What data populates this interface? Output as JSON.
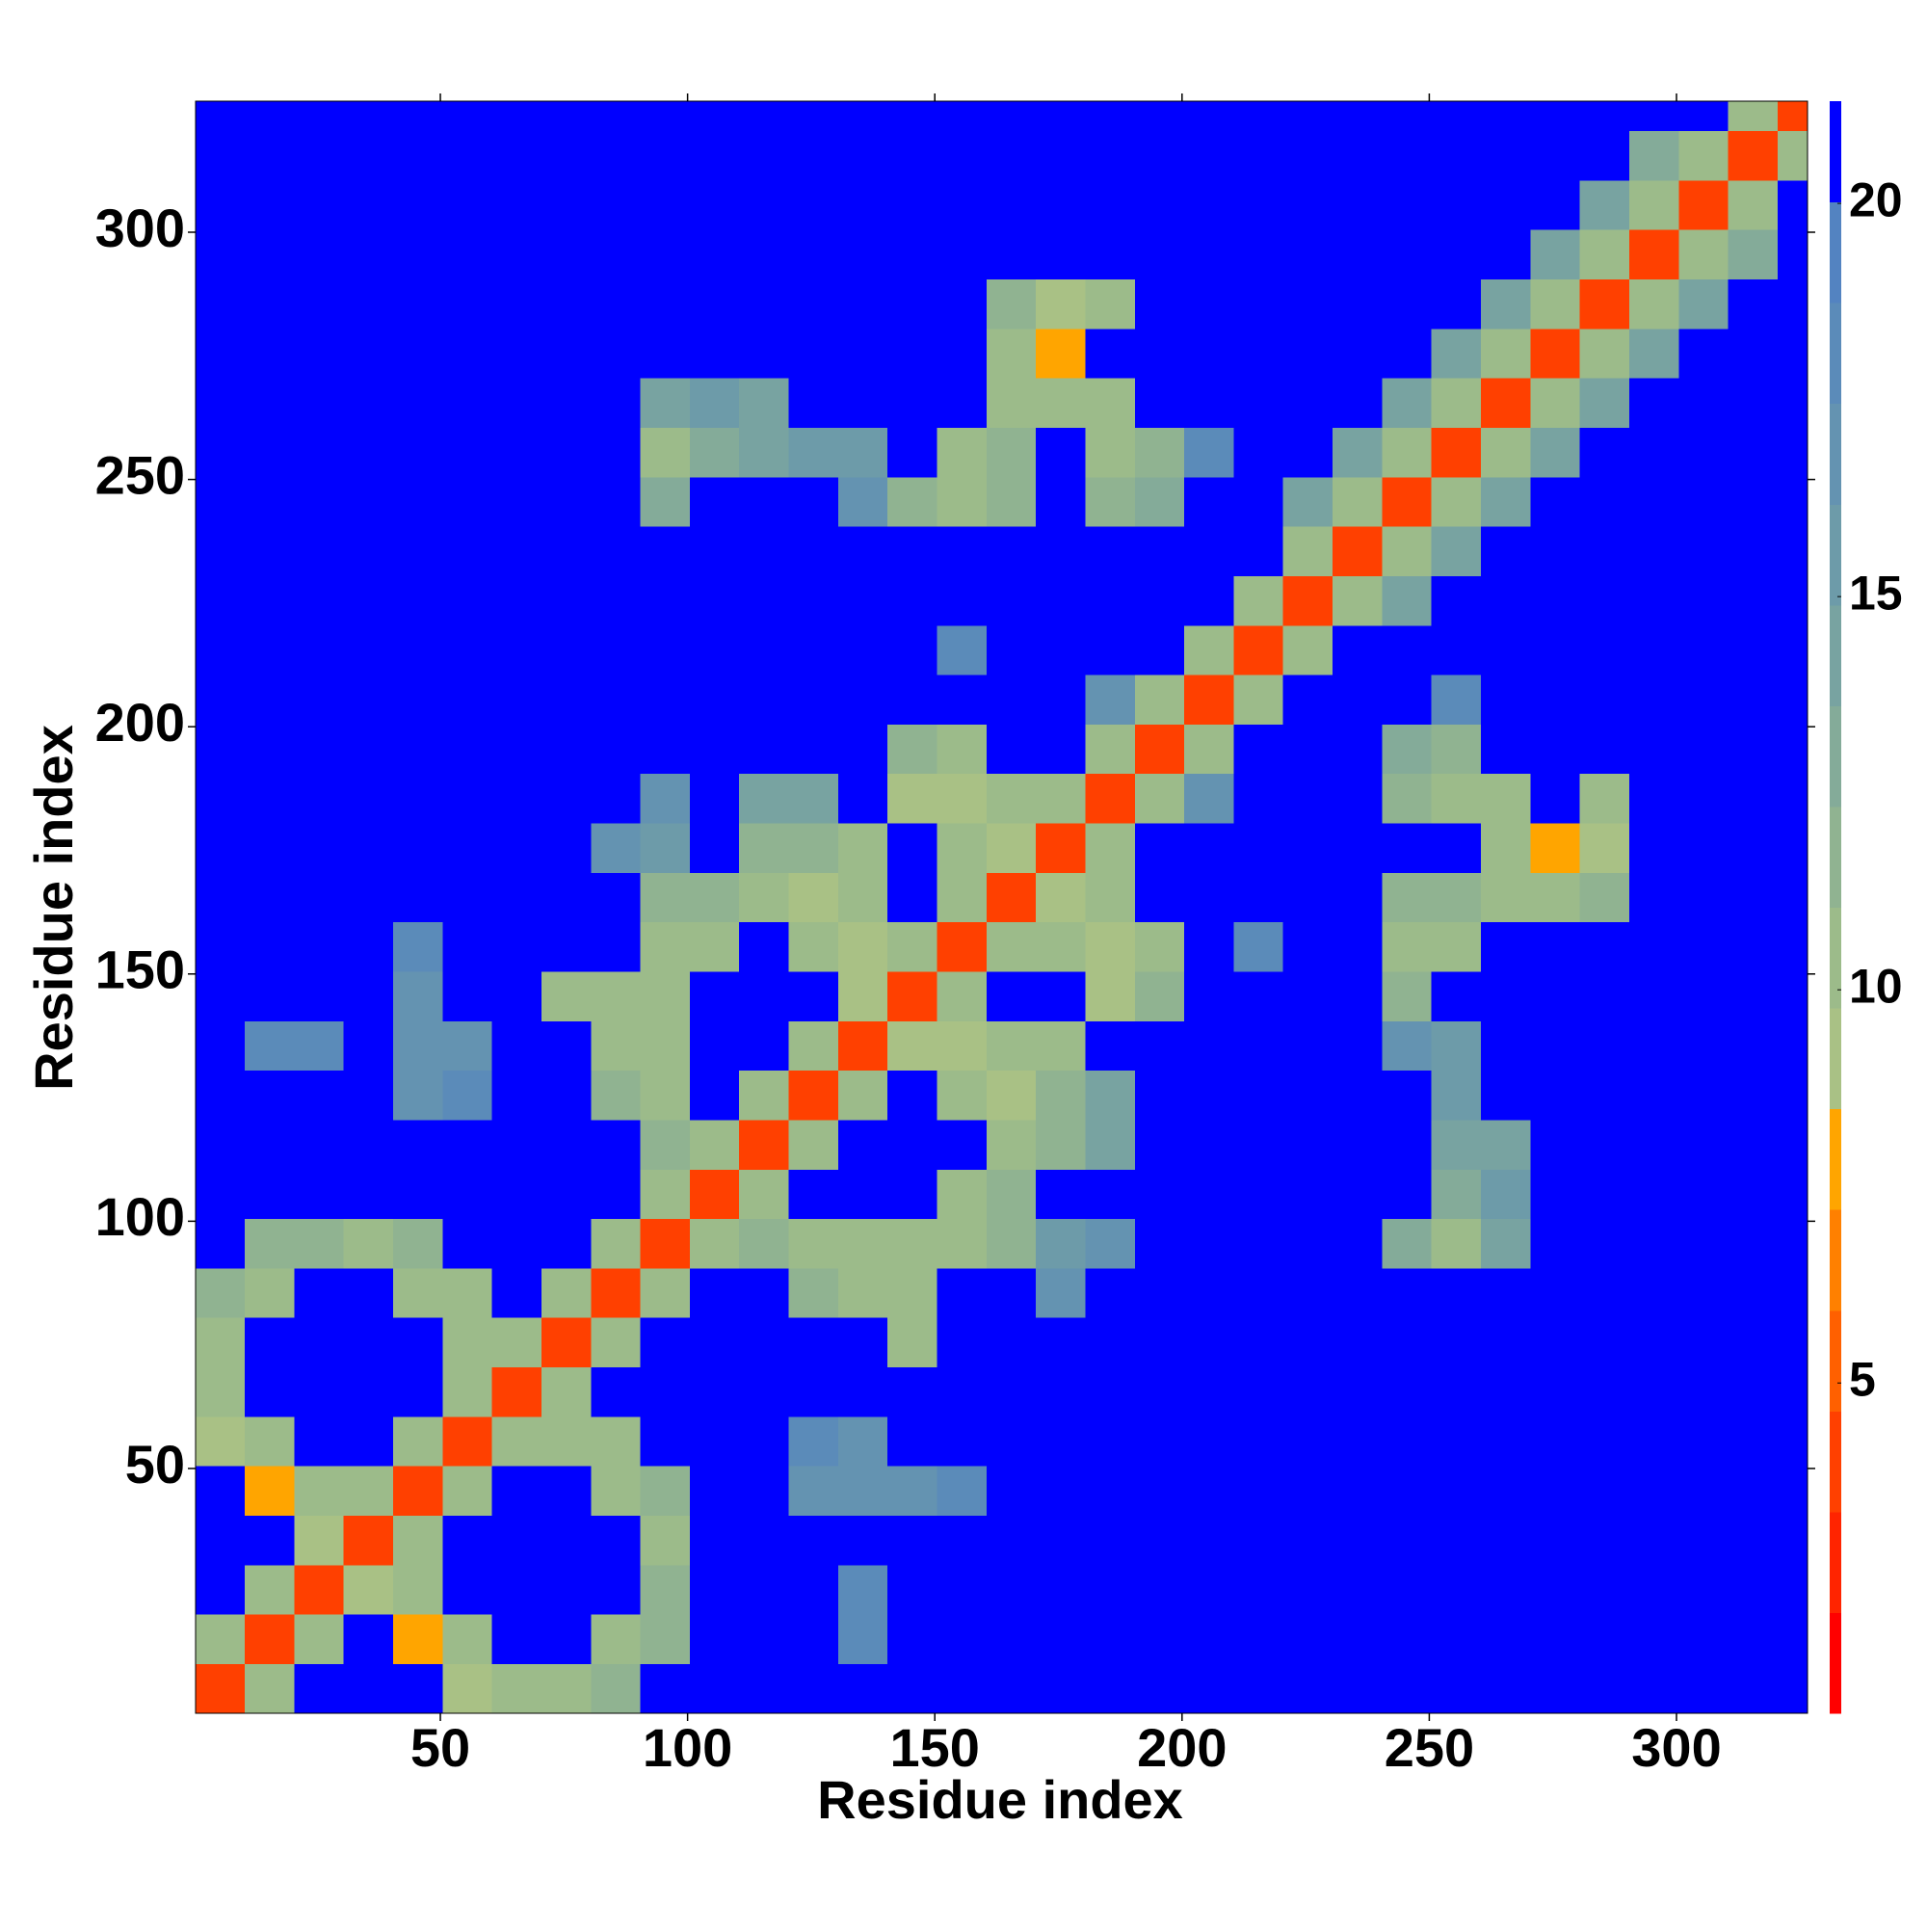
{
  "chart_data": {
    "type": "heatmap",
    "xlabel": "Residue index",
    "ylabel": "Residue index",
    "xlim": [
      0.5,
      326.5
    ],
    "ylim": [
      0.5,
      326.5
    ],
    "xticks": [
      50,
      100,
      150,
      200,
      250,
      300
    ],
    "yticks": [
      50,
      100,
      150,
      200,
      250,
      300
    ],
    "xbins": [
      0.5,
      10.5,
      20.5,
      30.5,
      40.5,
      50.5,
      60.5,
      70.5,
      80.5,
      90.5,
      100.5,
      110.5,
      120.5,
      130.5,
      140.5,
      150.5,
      160.5,
      170.5,
      180.5,
      190.5,
      200.5,
      210.5,
      220.5,
      230.5,
      240.5,
      250.5,
      260.5,
      270.5,
      280.5,
      290.5,
      300.5,
      310.5,
      320.5,
      326.5
    ],
    "ybins": [
      0.5,
      10.5,
      20.5,
      30.5,
      40.5,
      50.5,
      60.5,
      70.5,
      80.5,
      90.5,
      100.5,
      110.5,
      120.5,
      130.5,
      140.5,
      150.5,
      160.5,
      170.5,
      180.5,
      190.5,
      200.5,
      210.5,
      220.5,
      230.5,
      240.5,
      250.5,
      260.5,
      270.5,
      280.5,
      290.5,
      300.5,
      310.5,
      320.5,
      326.5
    ],
    "clim": [
      0.8,
      21.3
    ],
    "cticks": [
      5,
      10,
      15,
      20
    ],
    "colors": [
      "#ff0000",
      "#ff2400",
      "#ff4000",
      "#ff6000",
      "#ff8000",
      "#ffa500",
      "#a9c185",
      "#9cbb8a",
      "#90b391",
      "#84ab99",
      "#78a3a1",
      "#6d9ba9",
      "#6493b1",
      "#5b8bb9",
      "#5383c1",
      "#0000ff"
    ],
    "z": [
      [
        4,
        11,
        21,
        21,
        21,
        9,
        10,
        11,
        12,
        21,
        21,
        21,
        21,
        21,
        21,
        21,
        21,
        21,
        21,
        21,
        21,
        21,
        21,
        21,
        21,
        21,
        21,
        21,
        21,
        21,
        21,
        21,
        21
      ],
      [
        11,
        4,
        11,
        21,
        8,
        10,
        21,
        21,
        11,
        12,
        21,
        21,
        21,
        18,
        21,
        21,
        21,
        21,
        21,
        21,
        21,
        21,
        21,
        21,
        21,
        21,
        21,
        21,
        21,
        21,
        21,
        21,
        21
      ],
      [
        21,
        11,
        4,
        9,
        11,
        21,
        21,
        21,
        21,
        12,
        21,
        21,
        21,
        18,
        21,
        21,
        21,
        21,
        21,
        21,
        21,
        21,
        21,
        21,
        21,
        21,
        21,
        21,
        21,
        21,
        21,
        21,
        21
      ],
      [
        21,
        21,
        9,
        4,
        11,
        21,
        21,
        21,
        21,
        11,
        21,
        21,
        21,
        21,
        21,
        21,
        21,
        21,
        21,
        21,
        21,
        21,
        21,
        21,
        21,
        21,
        21,
        21,
        21,
        21,
        21,
        21,
        21
      ],
      [
        21,
        8,
        11,
        11,
        4,
        11,
        21,
        21,
        11,
        12,
        21,
        21,
        17,
        17,
        17,
        18,
        21,
        21,
        21,
        21,
        21,
        21,
        21,
        21,
        21,
        21,
        21,
        21,
        21,
        21,
        21,
        21,
        21
      ],
      [
        9,
        10,
        21,
        21,
        11,
        4,
        11,
        10,
        11,
        21,
        21,
        21,
        18,
        17,
        21,
        21,
        21,
        21,
        21,
        21,
        21,
        21,
        21,
        21,
        21,
        21,
        21,
        21,
        21,
        21,
        21,
        21,
        21
      ],
      [
        10,
        21,
        21,
        21,
        21,
        11,
        4,
        11,
        21,
        21,
        21,
        21,
        21,
        21,
        21,
        21,
        21,
        21,
        21,
        21,
        21,
        21,
        21,
        21,
        21,
        21,
        21,
        21,
        21,
        21,
        21,
        21,
        21
      ],
      [
        11,
        21,
        21,
        21,
        21,
        10,
        11,
        4,
        11,
        21,
        21,
        21,
        21,
        21,
        10,
        21,
        21,
        21,
        21,
        21,
        21,
        21,
        21,
        21,
        21,
        21,
        21,
        21,
        21,
        21,
        21,
        21,
        21
      ],
      [
        12,
        11,
        21,
        21,
        11,
        11,
        21,
        11,
        4,
        11,
        21,
        21,
        12,
        10,
        11,
        21,
        21,
        17,
        21,
        21,
        21,
        21,
        21,
        21,
        21,
        21,
        21,
        21,
        21,
        21,
        21,
        21,
        21
      ],
      [
        21,
        12,
        12,
        11,
        12,
        21,
        21,
        21,
        11,
        4,
        11,
        12,
        10,
        11,
        11,
        11,
        12,
        16,
        17,
        21,
        21,
        21,
        21,
        21,
        13,
        11,
        14,
        21,
        21,
        21,
        21,
        21,
        21
      ],
      [
        21,
        21,
        21,
        21,
        21,
        21,
        21,
        21,
        21,
        11,
        4,
        11,
        21,
        21,
        21,
        11,
        12,
        21,
        21,
        21,
        21,
        21,
        21,
        21,
        21,
        13,
        15,
        21,
        21,
        21,
        21,
        21,
        21
      ],
      [
        21,
        21,
        21,
        21,
        21,
        21,
        21,
        21,
        21,
        12,
        11,
        4,
        11,
        21,
        21,
        21,
        10,
        12,
        14,
        21,
        21,
        21,
        21,
        21,
        21,
        14,
        14,
        21,
        21,
        21,
        21,
        21,
        21
      ],
      [
        21,
        21,
        21,
        21,
        17,
        18,
        21,
        21,
        12,
        10,
        21,
        11,
        4,
        11,
        21,
        10,
        9,
        12,
        14,
        21,
        21,
        21,
        21,
        21,
        21,
        15,
        21,
        21,
        21,
        21,
        21,
        21,
        21
      ],
      [
        21,
        18,
        18,
        21,
        17,
        17,
        21,
        21,
        10,
        11,
        21,
        21,
        11,
        4,
        9,
        9,
        11,
        11,
        21,
        21,
        21,
        21,
        21,
        21,
        17,
        16,
        21,
        21,
        21,
        21,
        21,
        21,
        21
      ],
      [
        21,
        21,
        21,
        21,
        17,
        21,
        21,
        10,
        11,
        11,
        21,
        21,
        21,
        9,
        4,
        11,
        21,
        21,
        9,
        12,
        21,
        21,
        21,
        21,
        12,
        21,
        21,
        21,
        21,
        21,
        21,
        21,
        21
      ],
      [
        21,
        21,
        21,
        21,
        18,
        21,
        21,
        21,
        21,
        11,
        11,
        21,
        10,
        9,
        11,
        4,
        11,
        10,
        9,
        11,
        21,
        18,
        21,
        21,
        11,
        11,
        21,
        21,
        21,
        21,
        21,
        21,
        21
      ],
      [
        21,
        21,
        21,
        21,
        21,
        21,
        21,
        21,
        21,
        12,
        12,
        10,
        9,
        11,
        21,
        11,
        4,
        9,
        10,
        21,
        21,
        21,
        21,
        21,
        12,
        12,
        10,
        11,
        12,
        21,
        21,
        21,
        21
      ],
      [
        21,
        21,
        21,
        21,
        21,
        21,
        21,
        21,
        17,
        16,
        21,
        12,
        12,
        11,
        21,
        10,
        9,
        4,
        11,
        21,
        21,
        21,
        21,
        21,
        21,
        21,
        10,
        8,
        9,
        21,
        21,
        21,
        21
      ],
      [
        21,
        21,
        21,
        21,
        21,
        21,
        21,
        21,
        21,
        17,
        21,
        14,
        14,
        21,
        9,
        9,
        10,
        11,
        4,
        11,
        17,
        21,
        21,
        21,
        12,
        11,
        11,
        21,
        10,
        21,
        21,
        21,
        21
      ],
      [
        21,
        21,
        21,
        21,
        21,
        21,
        21,
        21,
        21,
        21,
        21,
        21,
        21,
        21,
        12,
        11,
        21,
        21,
        11,
        4,
        11,
        21,
        21,
        21,
        13,
        12,
        21,
        21,
        21,
        21,
        21,
        21,
        21
      ],
      [
        21,
        21,
        21,
        21,
        21,
        21,
        21,
        21,
        21,
        21,
        21,
        21,
        21,
        21,
        21,
        21,
        21,
        21,
        17,
        11,
        4,
        11,
        21,
        21,
        21,
        18,
        21,
        21,
        21,
        21,
        21,
        21,
        21
      ],
      [
        21,
        21,
        21,
        21,
        21,
        21,
        21,
        21,
        21,
        21,
        21,
        21,
        21,
        21,
        21,
        18,
        21,
        21,
        21,
        21,
        11,
        4,
        11,
        21,
        21,
        21,
        21,
        21,
        21,
        21,
        21,
        21,
        21
      ],
      [
        21,
        21,
        21,
        21,
        21,
        21,
        21,
        21,
        21,
        21,
        21,
        21,
        21,
        21,
        21,
        21,
        21,
        21,
        21,
        21,
        21,
        11,
        4,
        10,
        14,
        21,
        21,
        21,
        21,
        21,
        21,
        21,
        21
      ],
      [
        21,
        21,
        21,
        21,
        21,
        21,
        21,
        21,
        21,
        21,
        21,
        21,
        21,
        21,
        21,
        21,
        21,
        21,
        21,
        21,
        21,
        21,
        10,
        4,
        10,
        14,
        21,
        21,
        21,
        21,
        21,
        21,
        21
      ],
      [
        21,
        21,
        21,
        21,
        21,
        21,
        21,
        21,
        21,
        13,
        21,
        21,
        21,
        17,
        12,
        11,
        12,
        21,
        12,
        13,
        21,
        21,
        14,
        10,
        4,
        10,
        14,
        21,
        21,
        21,
        21,
        21,
        21
      ],
      [
        21,
        21,
        21,
        21,
        21,
        21,
        21,
        21,
        21,
        11,
        13,
        14,
        15,
        16,
        21,
        11,
        12,
        21,
        11,
        12,
        18,
        21,
        21,
        14,
        10,
        4,
        10,
        14,
        21,
        21,
        21,
        21,
        21
      ],
      [
        21,
        21,
        21,
        21,
        21,
        21,
        21,
        21,
        21,
        14,
        15,
        14,
        21,
        21,
        21,
        21,
        10,
        10,
        11,
        21,
        21,
        21,
        21,
        21,
        14,
        10,
        4,
        10,
        14,
        21,
        21,
        21,
        21
      ],
      [
        21,
        21,
        21,
        21,
        21,
        21,
        21,
        21,
        21,
        21,
        21,
        21,
        21,
        21,
        21,
        21,
        11,
        8,
        21,
        21,
        21,
        21,
        21,
        21,
        21,
        14,
        10,
        4,
        10,
        14,
        21,
        21,
        21
      ],
      [
        21,
        21,
        21,
        21,
        21,
        21,
        21,
        21,
        21,
        21,
        21,
        21,
        21,
        21,
        21,
        21,
        12,
        9,
        10,
        21,
        21,
        21,
        21,
        21,
        21,
        21,
        14,
        10,
        4,
        10,
        14,
        21,
        21
      ],
      [
        21,
        21,
        21,
        21,
        21,
        21,
        21,
        21,
        21,
        21,
        21,
        21,
        21,
        21,
        21,
        21,
        21,
        21,
        21,
        21,
        21,
        21,
        21,
        21,
        21,
        21,
        21,
        14,
        10,
        4,
        11,
        13,
        21
      ],
      [
        21,
        21,
        21,
        21,
        21,
        21,
        21,
        21,
        21,
        21,
        21,
        21,
        21,
        21,
        21,
        21,
        21,
        21,
        21,
        21,
        21,
        21,
        21,
        21,
        21,
        21,
        21,
        21,
        14,
        11,
        4,
        10,
        21
      ],
      [
        21,
        21,
        21,
        21,
        21,
        21,
        21,
        21,
        21,
        21,
        21,
        21,
        21,
        21,
        21,
        21,
        21,
        21,
        21,
        21,
        21,
        21,
        21,
        21,
        21,
        21,
        21,
        21,
        21,
        13,
        10,
        4,
        10
      ],
      [
        21,
        21,
        21,
        21,
        21,
        21,
        21,
        21,
        21,
        21,
        21,
        21,
        21,
        21,
        21,
        21,
        21,
        21,
        21,
        21,
        21,
        21,
        21,
        21,
        21,
        21,
        21,
        21,
        21,
        21,
        21,
        10,
        4
      ]
    ]
  }
}
